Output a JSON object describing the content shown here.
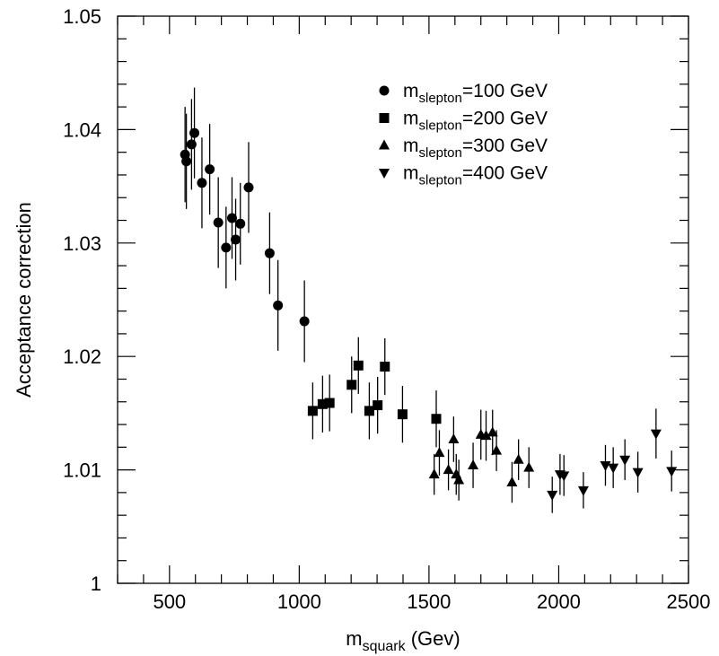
{
  "chart_data": {
    "type": "scatter",
    "xlabel": {
      "main": "m",
      "sub": "squark",
      "rest": " (Gev)"
    },
    "ylabel": "Acceptance correction",
    "xlim": [
      300,
      2500
    ],
    "ylim": [
      1.0,
      1.05
    ],
    "xticks": [
      500,
      1000,
      1500,
      2000,
      2500
    ],
    "xtick_labels": [
      "500",
      "1000",
      "1500",
      "2000",
      "2500"
    ],
    "yticks": [
      1.0,
      1.01,
      1.02,
      1.03,
      1.04,
      1.05
    ],
    "ytick_labels": [
      "1",
      "1.01",
      "1.02",
      "1.03",
      "1.04",
      "1.05"
    ],
    "grid": false,
    "legend_position": "top-right",
    "series": [
      {
        "name": "m_slepton=100 GeV",
        "legend_main": "m",
        "legend_sub": "slepton",
        "legend_rest": "=100 GeV",
        "marker": "circle",
        "x": [
          560,
          565,
          585,
          596,
          625,
          655,
          688,
          718,
          741,
          755,
          773,
          805,
          886,
          918,
          1020
        ],
        "y": [
          1.0378,
          1.0372,
          1.0387,
          1.0397,
          1.0353,
          1.0365,
          1.0318,
          1.0296,
          1.0322,
          1.0303,
          1.0317,
          1.0349,
          1.0291,
          1.0245,
          1.0231
        ],
        "err": [
          0.0042,
          0.0042,
          0.004,
          0.004,
          0.004,
          0.004,
          0.004,
          0.0036,
          0.0036,
          0.0036,
          0.0036,
          0.004,
          0.0036,
          0.004,
          0.0036
        ]
      },
      {
        "name": "m_slepton=200 GeV",
        "legend_main": "m",
        "legend_sub": "slepton",
        "legend_rest": "=200 GeV",
        "marker": "square",
        "x": [
          1052,
          1090,
          1117,
          1202,
          1228,
          1270,
          1302,
          1330,
          1398,
          1528
        ],
        "y": [
          1.0152,
          1.0158,
          1.0159,
          1.0175,
          1.0192,
          1.0152,
          1.0157,
          1.0191,
          1.0149,
          1.0145
        ],
        "err": [
          0.0025,
          0.0025,
          0.0025,
          0.0025,
          0.0025,
          0.0025,
          0.0025,
          0.0025,
          0.0025,
          0.0025
        ]
      },
      {
        "name": "m_slepton=300 GeV",
        "legend_main": "m",
        "legend_sub": "slepton",
        "legend_rest": "=300 GeV",
        "marker": "triangle-up",
        "x": [
          1520,
          1540,
          1575,
          1595,
          1605,
          1615,
          1670,
          1700,
          1720,
          1745,
          1760,
          1820,
          1845,
          1885
        ],
        "y": [
          1.0096,
          1.0115,
          1.01,
          1.0127,
          1.0096,
          1.0091,
          1.0104,
          1.0131,
          1.013,
          1.0133,
          1.0117,
          1.0089,
          1.0109,
          1.0102
        ],
        "err": [
          0.0018,
          0.002,
          0.0018,
          0.002,
          0.0018,
          0.0018,
          0.002,
          0.0022,
          0.0022,
          0.002,
          0.0018,
          0.0018,
          0.0018,
          0.0018
        ]
      },
      {
        "name": "m_slepton=400 GeV",
        "legend_main": "m",
        "legend_sub": "slepton",
        "legend_rest": "=400 GeV",
        "marker": "triangle-down",
        "x": [
          1975,
          2005,
          2020,
          2095,
          2180,
          2210,
          2255,
          2305,
          2375,
          2435
        ],
        "y": [
          1.0078,
          1.0096,
          1.0095,
          1.0082,
          1.0104,
          1.0102,
          1.0109,
          1.0098,
          1.0132,
          1.0099
        ],
        "err": [
          0.0016,
          0.0018,
          0.0018,
          0.0016,
          0.0018,
          0.0018,
          0.0018,
          0.0018,
          0.0022,
          0.0018
        ]
      }
    ]
  }
}
